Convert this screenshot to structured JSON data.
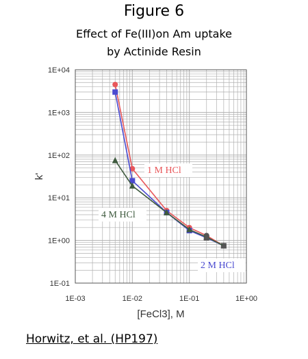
{
  "figure": {
    "title": "Figure 6",
    "subtitle_line1": "Effect of Fe(III)on Am uptake",
    "subtitle_line2": "by Actinide Resin"
  },
  "citation": "Horwitz, et al. (HP197)",
  "colors": {
    "red": "#e8575a",
    "blue": "#4a4ad0",
    "green": "#3e5a3e",
    "grid": "#b0b0b0",
    "gray_series": "#555555"
  },
  "chart_data": {
    "type": "line",
    "xlabel": "[FeCl3], M",
    "ylabel": "k'",
    "xscale": "log",
    "yscale": "log",
    "xlim": [
      0.001,
      1
    ],
    "ylim": [
      0.1,
      10000
    ],
    "grid": true,
    "xticks": [
      "1E-03",
      "1E-02",
      "1E-01",
      "1E+00"
    ],
    "yticks": [
      "1E-01",
      "1E+00",
      "1E+01",
      "1E+02",
      "1E+03",
      "1E+04"
    ],
    "series": [
      {
        "name": "1 M HCl",
        "color": "#e8575a",
        "marker": "circle",
        "x": [
          0.005,
          0.01,
          0.04,
          0.1,
          0.2,
          0.4
        ],
        "y": [
          4500,
          48,
          5,
          2,
          1.3,
          0.75
        ]
      },
      {
        "name": "2 M HCl",
        "color": "#4a4ad0",
        "marker": "square",
        "x": [
          0.005,
          0.01,
          0.04,
          0.1,
          0.2,
          0.4
        ],
        "y": [
          3000,
          25,
          4.5,
          1.7,
          1.15,
          0.75
        ]
      },
      {
        "name": "4 M HCl",
        "color": "#3e5a3e",
        "marker": "triangle",
        "x": [
          0.005,
          0.01,
          0.04,
          0.1,
          0.2,
          0.4
        ],
        "y": [
          75,
          19,
          4.5,
          1.8,
          1.2,
          0.75
        ]
      }
    ]
  }
}
